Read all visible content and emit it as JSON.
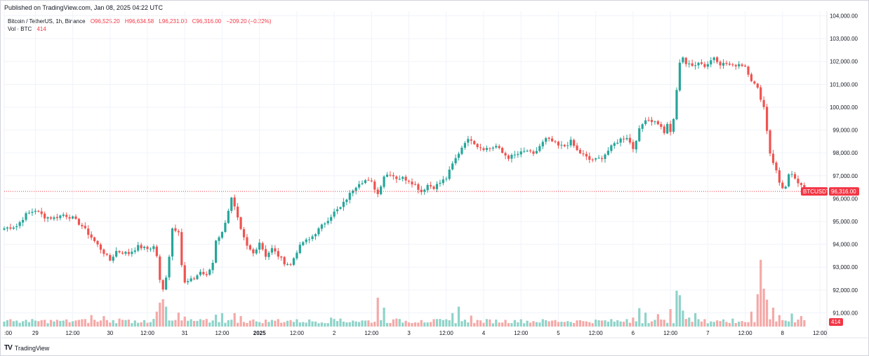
{
  "header": {
    "published": "Published on TradingView.com, Jan 08, 2025 04:22 UTC"
  },
  "legend": {
    "symbol": "Bitcoin / TetherUS, 1h, Binance",
    "open": "O96,525.20",
    "high": "H96,634.58",
    "low": "L96,231.00",
    "close": "C96,316.00",
    "change": "−209.20 (−0.22%)",
    "volume_label": "Vol · BTC",
    "volume_value": "414"
  },
  "price_tag": {
    "symbol": "BTCUSDT",
    "price": "96,316.00"
  },
  "volume_tag": "414",
  "footer": {
    "logo_text": "TradingView"
  },
  "colors": {
    "up": "#26a69a",
    "down": "#ef5350",
    "up_vol": "#8fd3c9",
    "down_vol": "#f4a9a7",
    "grid": "#f0f3fa",
    "tag": "#f23645"
  },
  "chart_data": {
    "type": "candlestick",
    "title": "Bitcoin / TetherUS, 1h, Binance",
    "ylim": [
      90400,
      104200
    ],
    "y_ticks": [
      "104,000.00",
      "103,000.00",
      "102,000.00",
      "101,000.00",
      "100,000.00",
      "99,000.00",
      "98,000.00",
      "97,000.00",
      "96,000.00",
      "95,000.00",
      "94,000.00",
      "93,000.00",
      "92,000.00",
      "91,000.00"
    ],
    "y_tick_values": [
      104000,
      103000,
      102000,
      101000,
      100000,
      99000,
      98000,
      97000,
      96000,
      95000,
      94000,
      93000,
      92000,
      91000
    ],
    "x_ticks": [
      {
        "label": ":00",
        "bold": false,
        "hour": 0
      },
      {
        "label": "29",
        "bold": false,
        "hour": 10
      },
      {
        "label": "12:00",
        "bold": false,
        "hour": 22
      },
      {
        "label": "30",
        "bold": false,
        "hour": 34
      },
      {
        "label": "12:00",
        "bold": false,
        "hour": 46
      },
      {
        "label": "31",
        "bold": false,
        "hour": 58
      },
      {
        "label": "12:00",
        "bold": false,
        "hour": 70
      },
      {
        "label": "2025",
        "bold": true,
        "hour": 82
      },
      {
        "label": "12:00",
        "bold": false,
        "hour": 94
      },
      {
        "label": "2",
        "bold": false,
        "hour": 106
      },
      {
        "label": "12:00",
        "bold": false,
        "hour": 118
      },
      {
        "label": "3",
        "bold": false,
        "hour": 130
      },
      {
        "label": "12:00",
        "bold": false,
        "hour": 142
      },
      {
        "label": "4",
        "bold": false,
        "hour": 154
      },
      {
        "label": "12:00",
        "bold": false,
        "hour": 166
      },
      {
        "label": "5",
        "bold": false,
        "hour": 178
      },
      {
        "label": "12:00",
        "bold": false,
        "hour": 190
      },
      {
        "label": "6",
        "bold": false,
        "hour": 202
      },
      {
        "label": "12:00",
        "bold": false,
        "hour": 214
      },
      {
        "label": "7",
        "bold": false,
        "hour": 226
      },
      {
        "label": "12:00",
        "bold": false,
        "hour": 238
      },
      {
        "label": "8",
        "bold": false,
        "hour": 250
      },
      {
        "label": "12:00",
        "bold": false,
        "hour": 262
      }
    ],
    "last_price": 96316,
    "close_path": [
      [
        0,
        94700
      ],
      [
        4,
        94800
      ],
      [
        7,
        95300
      ],
      [
        10,
        95500
      ],
      [
        13,
        95200
      ],
      [
        16,
        95150
      ],
      [
        19,
        95300
      ],
      [
        22,
        95150
      ],
      [
        25,
        94800
      ],
      [
        28,
        94300
      ],
      [
        31,
        93800
      ],
      [
        34,
        93300
      ],
      [
        36,
        93700
      ],
      [
        40,
        93600
      ],
      [
        43,
        93900
      ],
      [
        46,
        93800
      ],
      [
        48,
        93900
      ],
      [
        49,
        93500
      ],
      [
        50,
        92400
      ],
      [
        51,
        92000
      ],
      [
        52,
        92600
      ],
      [
        53,
        93500
      ],
      [
        54,
        94700
      ],
      [
        56,
        94600
      ],
      [
        57,
        93100
      ],
      [
        58,
        92300
      ],
      [
        61,
        92500
      ],
      [
        63,
        92800
      ],
      [
        65,
        92600
      ],
      [
        67,
        93200
      ],
      [
        68,
        94200
      ],
      [
        70,
        94500
      ],
      [
        72,
        95500
      ],
      [
        73,
        96000
      ],
      [
        74,
        95600
      ],
      [
        76,
        94600
      ],
      [
        78,
        93900
      ],
      [
        80,
        93600
      ],
      [
        82,
        94100
      ],
      [
        84,
        93500
      ],
      [
        86,
        93800
      ],
      [
        88,
        93500
      ],
      [
        90,
        93200
      ],
      [
        92,
        93100
      ],
      [
        94,
        93700
      ],
      [
        96,
        94100
      ],
      [
        98,
        94200
      ],
      [
        100,
        94500
      ],
      [
        102,
        94800
      ],
      [
        104,
        95100
      ],
      [
        106,
        95400
      ],
      [
        108,
        95600
      ],
      [
        110,
        96000
      ],
      [
        112,
        96400
      ],
      [
        114,
        96700
      ],
      [
        116,
        96800
      ],
      [
        118,
        96700
      ],
      [
        120,
        96200
      ],
      [
        122,
        97000
      ],
      [
        124,
        97100
      ],
      [
        126,
        96900
      ],
      [
        128,
        96900
      ],
      [
        130,
        96800
      ],
      [
        132,
        96600
      ],
      [
        134,
        96300
      ],
      [
        136,
        96600
      ],
      [
        138,
        96500
      ],
      [
        140,
        96700
      ],
      [
        142,
        96900
      ],
      [
        144,
        97500
      ],
      [
        146,
        98000
      ],
      [
        148,
        98500
      ],
      [
        150,
        98600
      ],
      [
        152,
        98300
      ],
      [
        154,
        98200
      ],
      [
        156,
        98200
      ],
      [
        158,
        98300
      ],
      [
        160,
        98000
      ],
      [
        162,
        97800
      ],
      [
        164,
        97900
      ],
      [
        166,
        98000
      ],
      [
        168,
        98100
      ],
      [
        170,
        97900
      ],
      [
        172,
        98300
      ],
      [
        174,
        98600
      ],
      [
        176,
        98500
      ],
      [
        178,
        98300
      ],
      [
        180,
        98300
      ],
      [
        182,
        98500
      ],
      [
        184,
        98100
      ],
      [
        186,
        97900
      ],
      [
        188,
        97700
      ],
      [
        190,
        97700
      ],
      [
        192,
        97800
      ],
      [
        194,
        98100
      ],
      [
        196,
        98400
      ],
      [
        198,
        98600
      ],
      [
        200,
        98700
      ],
      [
        202,
        98200
      ],
      [
        204,
        99000
      ],
      [
        206,
        99500
      ],
      [
        208,
        99400
      ],
      [
        210,
        99300
      ],
      [
        212,
        98900
      ],
      [
        213,
        99200
      ],
      [
        214,
        98900
      ],
      [
        215,
        99500
      ],
      [
        216,
        100700
      ],
      [
        217,
        102000
      ],
      [
        218,
        102200
      ],
      [
        219,
        101900
      ],
      [
        221,
        101800
      ],
      [
        223,
        102000
      ],
      [
        225,
        101800
      ],
      [
        226,
        101900
      ],
      [
        228,
        102200
      ],
      [
        230,
        101900
      ],
      [
        232,
        101900
      ],
      [
        234,
        101800
      ],
      [
        236,
        101900
      ],
      [
        238,
        101800
      ],
      [
        240,
        101200
      ],
      [
        242,
        100800
      ],
      [
        244,
        100000
      ],
      [
        245,
        99000
      ],
      [
        246,
        98000
      ],
      [
        247,
        97600
      ],
      [
        248,
        97200
      ],
      [
        249,
        96700
      ],
      [
        250,
        96500
      ],
      [
        251,
        96500
      ],
      [
        252,
        97000
      ],
      [
        253,
        97000
      ],
      [
        254,
        96900
      ],
      [
        255,
        96600
      ],
      [
        256,
        96550
      ],
      [
        257,
        96316
      ]
    ],
    "volume_ylim": [
      0,
      1800
    ],
    "volume_spikes": [
      [
        0,
        100
      ],
      [
        4,
        120
      ],
      [
        8,
        90
      ],
      [
        19,
        120
      ],
      [
        26,
        150
      ],
      [
        28,
        230
      ],
      [
        32,
        210
      ],
      [
        37,
        160
      ],
      [
        40,
        140
      ],
      [
        45,
        130
      ],
      [
        49,
        300
      ],
      [
        50,
        480
      ],
      [
        51,
        550
      ],
      [
        52,
        400
      ],
      [
        56,
        280
      ],
      [
        58,
        200
      ],
      [
        68,
        240
      ],
      [
        70,
        270
      ],
      [
        74,
        270
      ],
      [
        76,
        210
      ],
      [
        82,
        90
      ],
      [
        88,
        150
      ],
      [
        92,
        130
      ],
      [
        105,
        180
      ],
      [
        108,
        160
      ],
      [
        112,
        120
      ],
      [
        120,
        580
      ],
      [
        122,
        380
      ],
      [
        126,
        160
      ],
      [
        134,
        130
      ],
      [
        144,
        270
      ],
      [
        146,
        400
      ],
      [
        150,
        220
      ],
      [
        164,
        130
      ],
      [
        176,
        120
      ],
      [
        186,
        110
      ],
      [
        200,
        150
      ],
      [
        202,
        180
      ],
      [
        204,
        370
      ],
      [
        206,
        280
      ],
      [
        210,
        250
      ],
      [
        214,
        350
      ],
      [
        216,
        720
      ],
      [
        217,
        630
      ],
      [
        218,
        320
      ],
      [
        220,
        180
      ],
      [
        222,
        270
      ],
      [
        234,
        160
      ],
      [
        240,
        300
      ],
      [
        242,
        650
      ],
      [
        243,
        1340
      ],
      [
        244,
        760
      ],
      [
        245,
        540
      ],
      [
        247,
        380
      ],
      [
        249,
        230
      ],
      [
        251,
        120
      ],
      [
        253,
        260
      ],
      [
        255,
        140
      ],
      [
        256,
        210
      ],
      [
        257,
        130
      ]
    ],
    "volume_base": 110,
    "n_hours": 258
  }
}
